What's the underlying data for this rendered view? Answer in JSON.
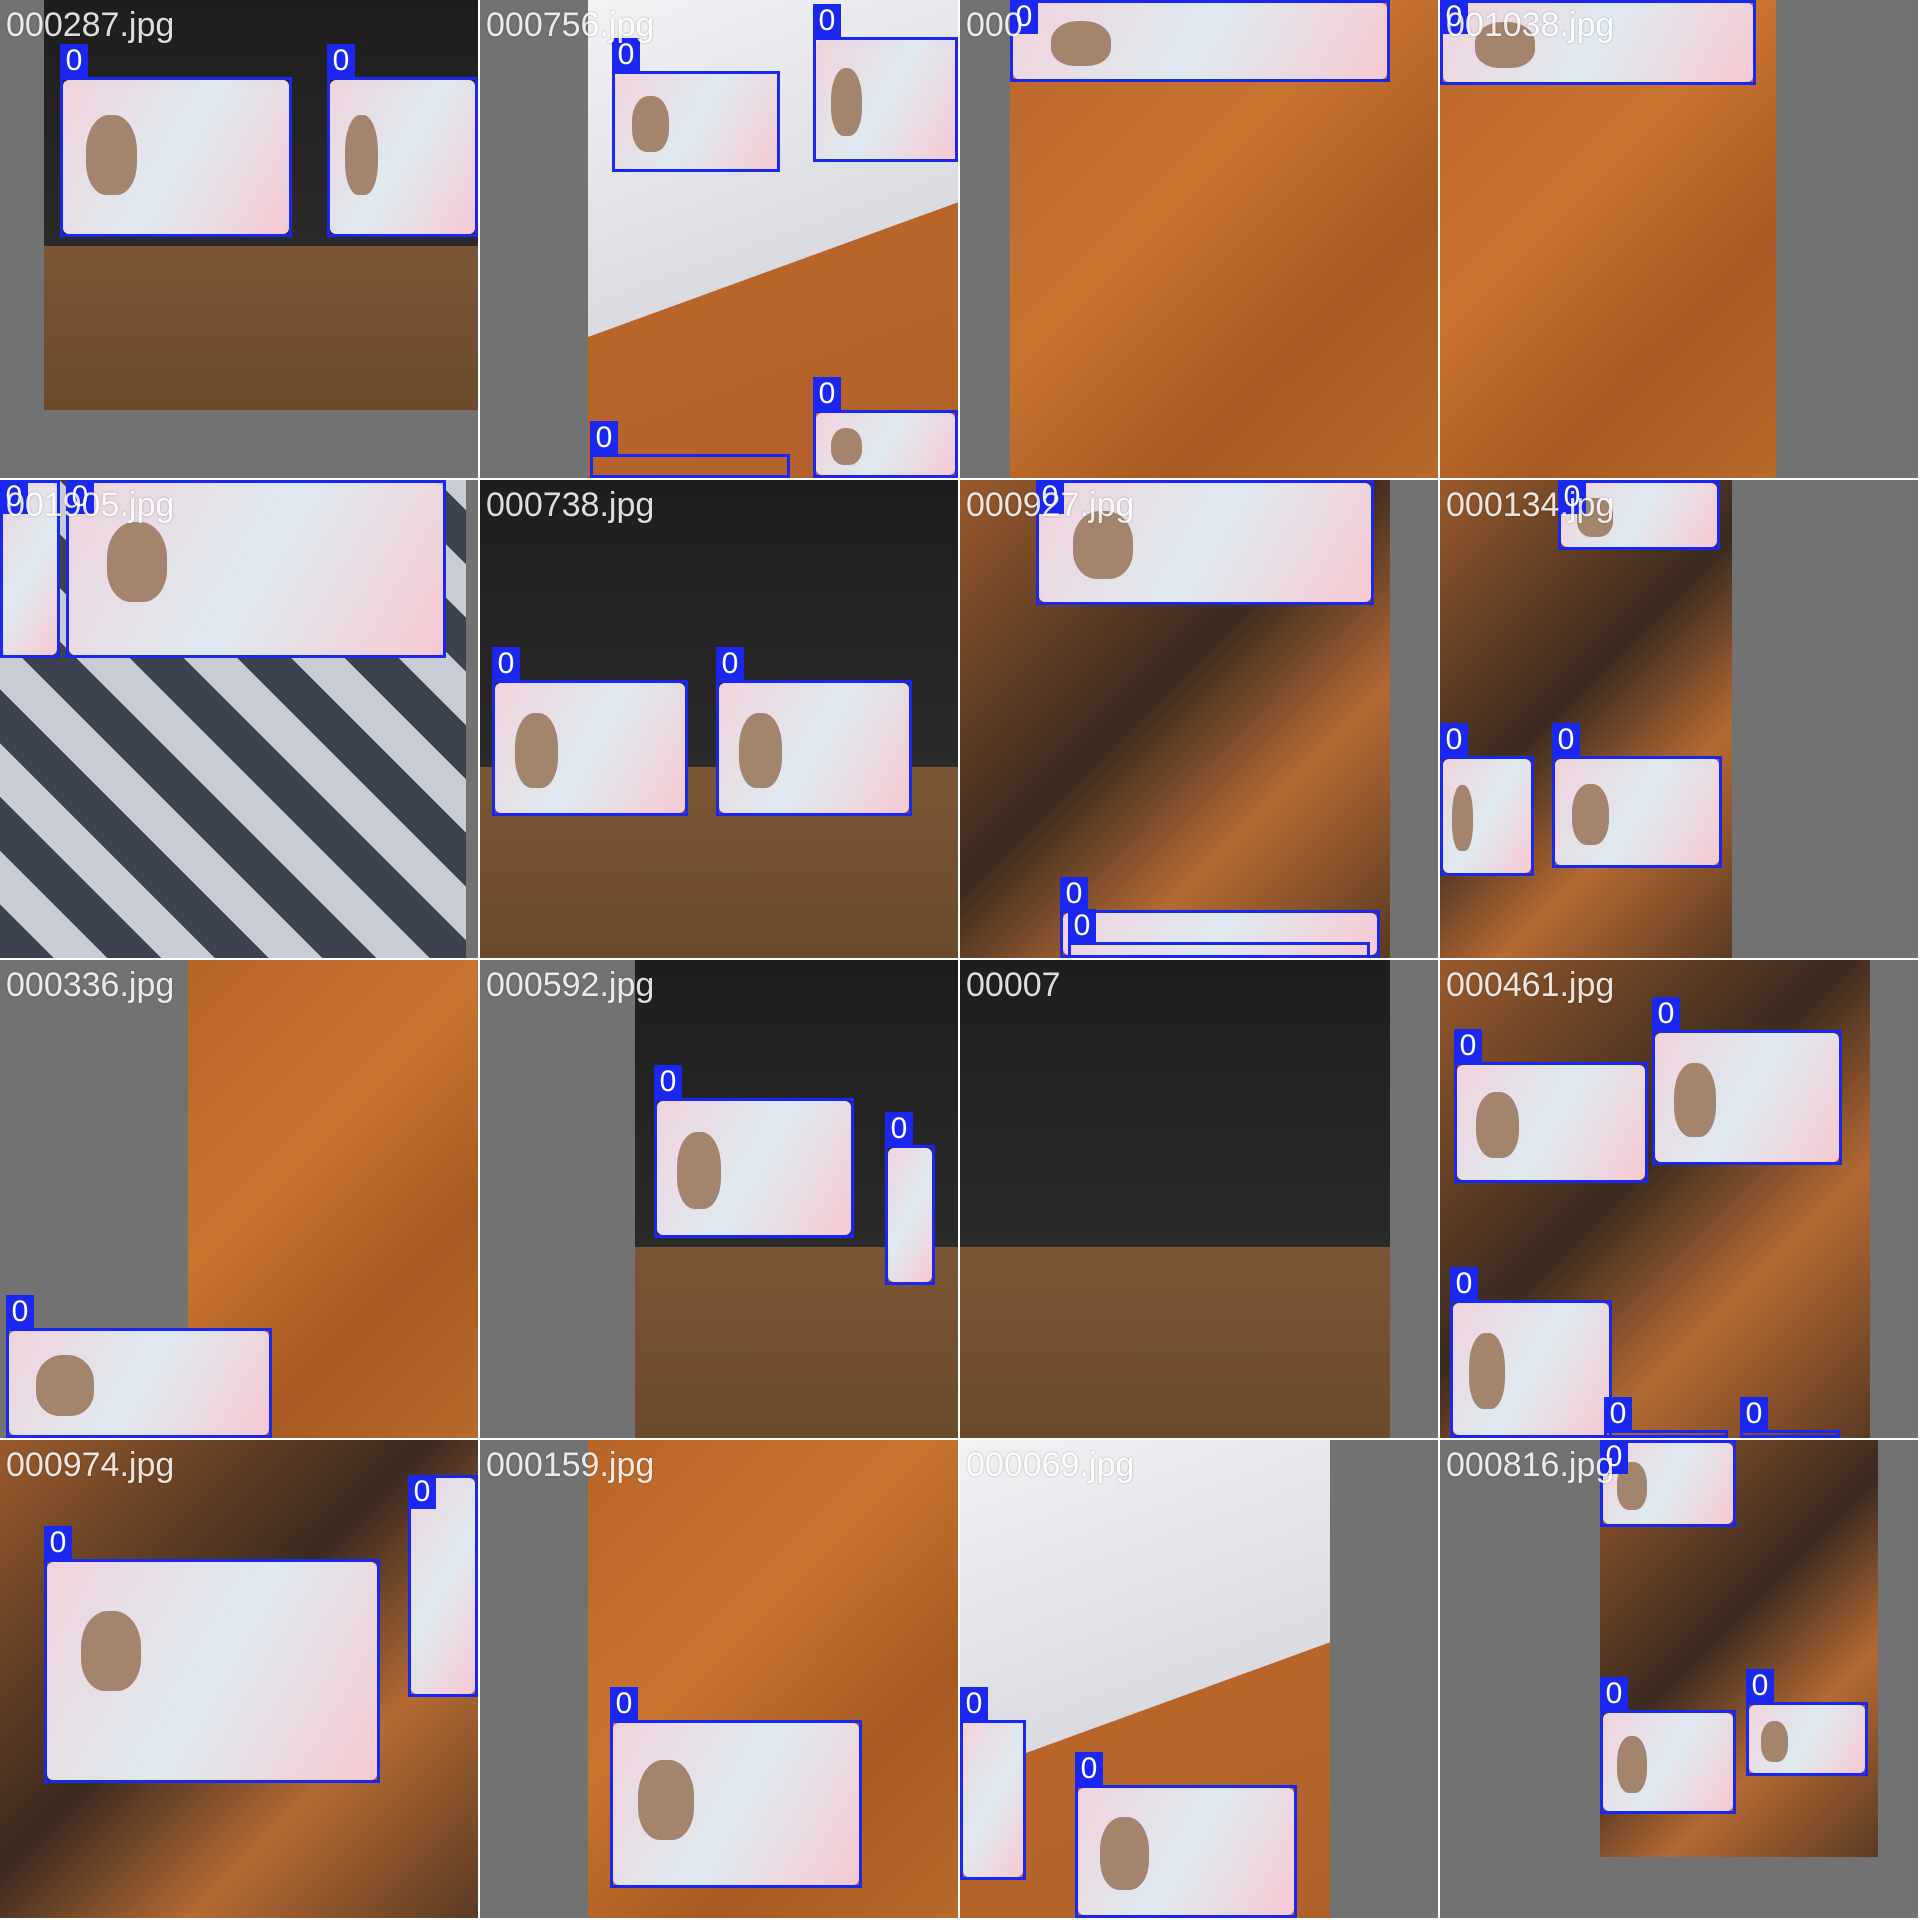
{
  "colors": {
    "box": "#1a27f0",
    "tile_background": "#727272",
    "wood": "#b8652a",
    "keyboard": "#1e1e1e",
    "cloth": "#3c4250",
    "card_tint": "#f0d3dd"
  },
  "tiles": [
    {
      "filename": "000287.jpg",
      "scene": "keyboard",
      "labels": [
        "0",
        "0"
      ]
    },
    {
      "filename": "000756.jpg",
      "scene": "paper",
      "labels": [
        "0",
        "0",
        "0",
        "0"
      ]
    },
    {
      "filename": "000",
      "scene": "wood",
      "labels": [
        "0"
      ]
    },
    {
      "filename": "001038.jpg",
      "scene": "wood",
      "labels": [
        "0"
      ]
    },
    {
      "filename": "001905.jpg",
      "scene": "cloth",
      "labels": [
        "0",
        "0"
      ]
    },
    {
      "filename": "000738.jpg",
      "scene": "keyboard",
      "labels": [
        "0",
        "0"
      ]
    },
    {
      "filename": "000927.jpg",
      "scene": "desk",
      "labels": [
        "0",
        "0",
        "0"
      ]
    },
    {
      "filename": "000134.jpg",
      "scene": "desk",
      "labels": [
        "0",
        "0",
        "0"
      ]
    },
    {
      "filename": "000336.jpg",
      "scene": "wood",
      "labels": [
        "0"
      ]
    },
    {
      "filename": "000592.jpg",
      "scene": "keyboard",
      "labels": [
        "0",
        "0"
      ]
    },
    {
      "filename": "00007",
      "scene": "keyboard",
      "labels": []
    },
    {
      "filename": "000461.jpg",
      "scene": "desk",
      "labels": [
        "0",
        "0",
        "0",
        "0",
        "0"
      ]
    },
    {
      "filename": "000974.jpg",
      "scene": "desk",
      "labels": [
        "0",
        "0"
      ]
    },
    {
      "filename": "000159.jpg",
      "scene": "wood",
      "labels": [
        "0"
      ]
    },
    {
      "filename": "000069.jpg",
      "scene": "paper",
      "labels": [
        "0",
        "0"
      ]
    },
    {
      "filename": "000816.jpg",
      "scene": "desk",
      "labels": [
        "0",
        "0",
        "0"
      ]
    }
  ]
}
